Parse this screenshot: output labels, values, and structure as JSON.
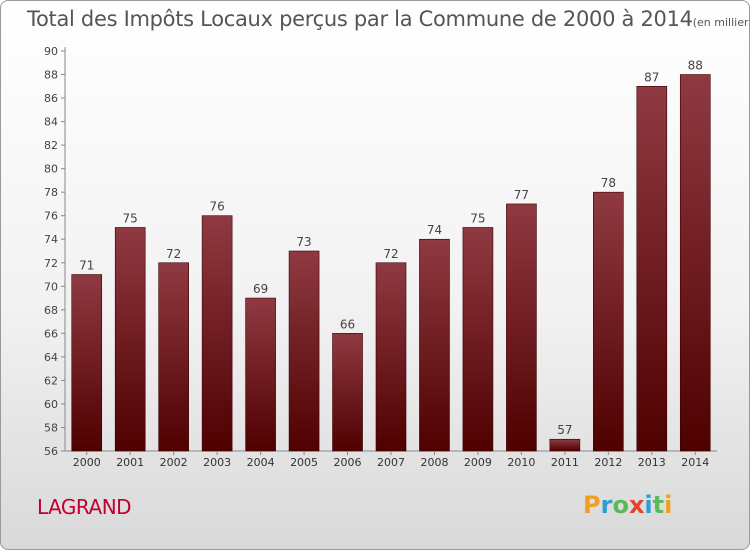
{
  "title": {
    "main": "Total des Impôts Locaux perçus par la Commune de 2000 à 2014",
    "unit": "(en milliers d'€)"
  },
  "commune": "LAGRAND",
  "logo": {
    "text": "Proxiti",
    "letters": [
      {
        "ch": "P",
        "color": "#f0a020"
      },
      {
        "ch": "r",
        "color": "#2a9fd6"
      },
      {
        "ch": "o",
        "color": "#5cb85c"
      },
      {
        "ch": "x",
        "color": "#e8412d"
      },
      {
        "ch": "i",
        "color": "#2a9fd6"
      },
      {
        "ch": "t",
        "color": "#5cb85c"
      },
      {
        "ch": "i",
        "color": "#f0a020"
      }
    ]
  },
  "colors": {
    "bar_top": "#8f3a42",
    "bar_bottom": "#4f0000",
    "commune": "#c0002f"
  },
  "chart_data": {
    "type": "bar",
    "title": "Total des Impôts Locaux perçus par la Commune de 2000 à 2014",
    "subtitle": "(en milliers d'€)",
    "xlabel": "",
    "ylabel": "",
    "categories": [
      "2000",
      "2001",
      "2002",
      "2003",
      "2004",
      "2005",
      "2006",
      "2007",
      "2008",
      "2009",
      "2010",
      "2011",
      "2012",
      "2013",
      "2014"
    ],
    "values": [
      71,
      75,
      72,
      76,
      69,
      73,
      66,
      72,
      74,
      75,
      77,
      57,
      78,
      87,
      88
    ],
    "ylim": [
      56,
      90
    ],
    "ytick_step": 2,
    "grid": false,
    "data_labels": true
  }
}
